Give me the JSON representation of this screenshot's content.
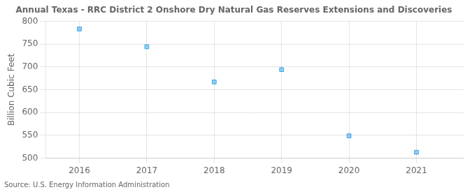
{
  "chart_data": {
    "type": "scatter",
    "title": "Annual Texas - RRC District 2 Onshore Dry Natural Gas Reserves Extensions and Discoveries",
    "ylabel": "Billion Cubic Feet",
    "annotations": [
      "Source: U.S. Energy Information Administration"
    ],
    "x": [
      2016,
      2017,
      2018,
      2019,
      2020,
      2021
    ],
    "values": [
      783,
      744,
      667,
      694,
      549,
      513
    ],
    "marker": "square",
    "xlim": [
      2015.5,
      2021.7
    ],
    "xticks": [
      2016,
      2017,
      2018,
      2019,
      2020,
      2021
    ],
    "ylim": [
      500,
      800
    ],
    "yticks": [
      500,
      550,
      600,
      650,
      700,
      750,
      800
    ],
    "grid": true
  }
}
